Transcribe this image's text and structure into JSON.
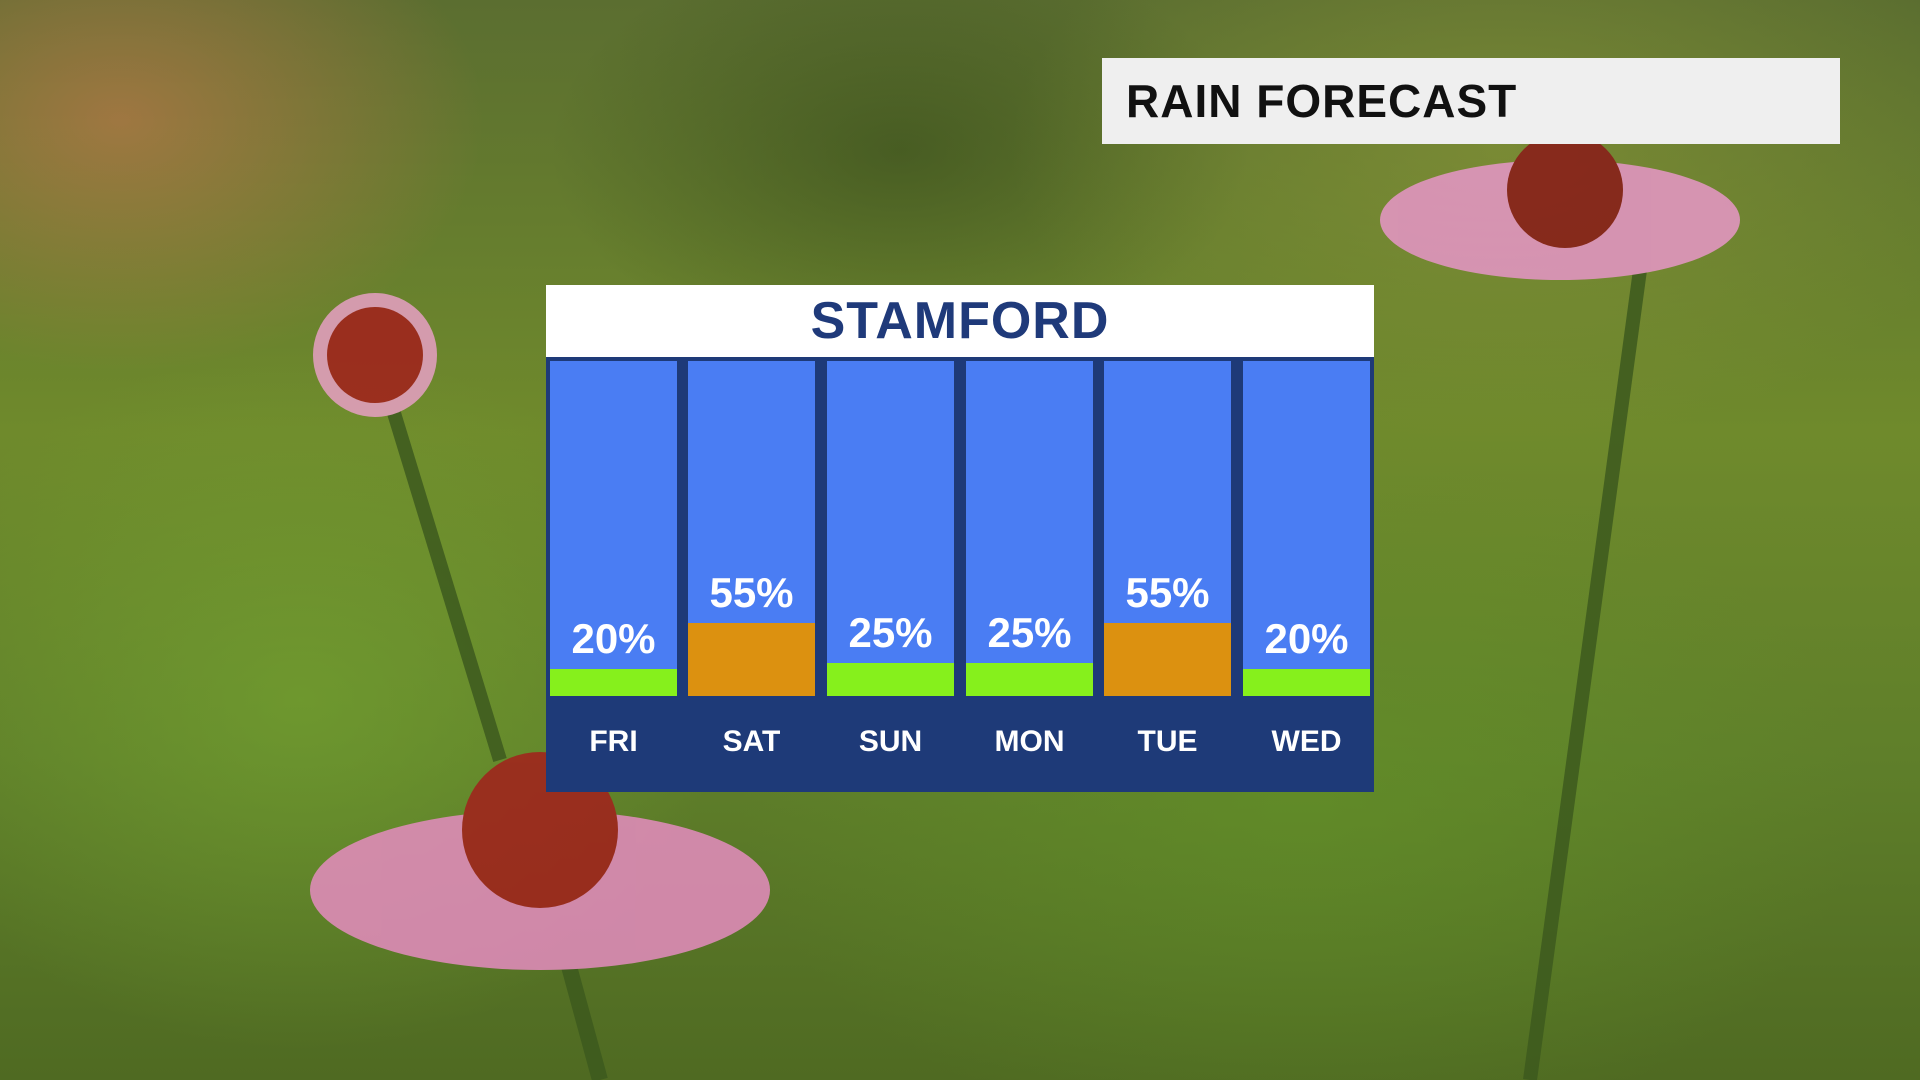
{
  "header": {
    "title": "RAIN FORECAST"
  },
  "chart_data": {
    "type": "bar",
    "title": "STAMFORD",
    "categories": [
      "FRI",
      "SAT",
      "SUN",
      "MON",
      "TUE",
      "WED"
    ],
    "values": [
      20,
      55,
      25,
      25,
      55,
      20
    ],
    "value_labels": [
      "20%",
      "55%",
      "25%",
      "25%",
      "55%",
      "20%"
    ],
    "bar_colors": [
      "#86f01c",
      "#dc9110",
      "#86f01c",
      "#86f01c",
      "#dc9110",
      "#86f01c"
    ],
    "ylim": [
      0,
      100
    ],
    "colors": {
      "column_background": "#4a7df3",
      "frame": "#1e3a78",
      "low_chance": "#86f01c",
      "high_chance": "#dc9110",
      "title_text": "#1f3a7a"
    }
  }
}
